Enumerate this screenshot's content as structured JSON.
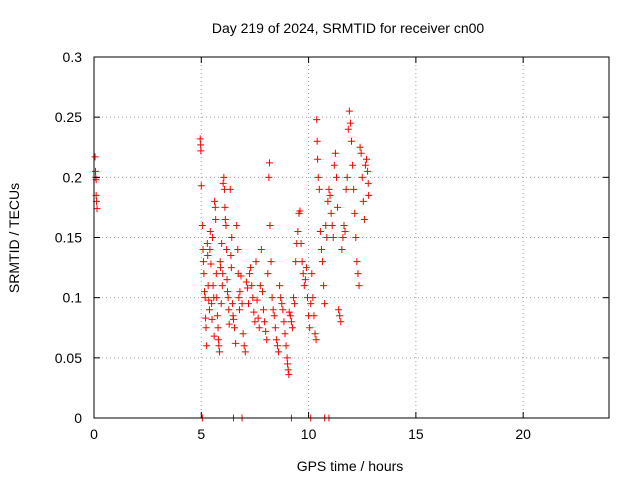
{
  "chart_data": {
    "type": "scatter",
    "title": "Day 219 of 2024, SRMTID for receiver cn00",
    "xlabel": "GPS time / hours",
    "ylabel": "SRMTID / TECUs",
    "xlim": [
      0,
      24
    ],
    "ylim": [
      0,
      0.3
    ],
    "xticks": [
      0,
      5,
      10,
      15,
      20
    ],
    "xtick_labels": [
      "0",
      "5",
      "10",
      "15",
      "20"
    ],
    "yticks": [
      0,
      0.05,
      0.1,
      0.15,
      0.2,
      0.25,
      0.3
    ],
    "ytick_labels": [
      "0",
      "0.05",
      "0.1",
      "0.15",
      "0.2",
      "0.25",
      "0.3"
    ],
    "grid": true,
    "marker": "+",
    "color": "#ff0000",
    "series": [
      {
        "name": "SRMTID",
        "points": [
          [
            0.05,
            0.217
          ],
          [
            0.07,
            0.205
          ],
          [
            0.08,
            0.2
          ],
          [
            0.1,
            0.198
          ],
          [
            0.1,
            0.185
          ],
          [
            0.12,
            0.18
          ],
          [
            0.14,
            0.174
          ],
          [
            4.95,
            0.232
          ],
          [
            4.97,
            0.227
          ],
          [
            4.98,
            0.222
          ],
          [
            5.0,
            0.193
          ],
          [
            5.05,
            0.16
          ],
          [
            5.08,
            0.14
          ],
          [
            5.1,
            0.13
          ],
          [
            5.12,
            0.12
          ],
          [
            5.15,
            0.105
          ],
          [
            5.18,
            0.1
          ],
          [
            5.2,
            0.083
          ],
          [
            5.22,
            0.075
          ],
          [
            5.25,
            0.06
          ],
          [
            5.28,
            0.145
          ],
          [
            5.3,
            0.135
          ],
          [
            5.32,
            0.11
          ],
          [
            5.35,
            0.098
          ],
          [
            5.38,
            0.09
          ],
          [
            5.4,
            0.14
          ],
          [
            5.42,
            0.155
          ],
          [
            5.45,
            0.128
          ],
          [
            5.48,
            0.095
          ],
          [
            5.5,
            0.082
          ],
          [
            5.52,
            0.15
          ],
          [
            5.55,
            0.11
          ],
          [
            5.58,
            0.1
          ],
          [
            5.6,
            0.068
          ],
          [
            5.62,
            0.18
          ],
          [
            5.65,
            0.175
          ],
          [
            5.67,
            0.165
          ],
          [
            5.7,
            0.12
          ],
          [
            5.72,
            0.1
          ],
          [
            5.75,
            0.085
          ],
          [
            5.78,
            0.075
          ],
          [
            5.8,
            0.065
          ],
          [
            5.82,
            0.06
          ],
          [
            5.85,
            0.055
          ],
          [
            5.88,
            0.13
          ],
          [
            5.9,
            0.125
          ],
          [
            5.93,
            0.095
          ],
          [
            5.95,
            0.145
          ],
          [
            5.98,
            0.11
          ],
          [
            6.0,
            0.12
          ],
          [
            6.02,
            0.195
          ],
          [
            6.05,
            0.2
          ],
          [
            6.08,
            0.19
          ],
          [
            6.1,
            0.175
          ],
          [
            6.12,
            0.165
          ],
          [
            6.15,
            0.16
          ],
          [
            6.18,
            0.14
          ],
          [
            6.2,
            0.115
          ],
          [
            6.22,
            0.105
          ],
          [
            6.25,
            0.1
          ],
          [
            6.28,
            0.09
          ],
          [
            6.3,
            0.078
          ],
          [
            6.35,
            0.19
          ],
          [
            6.38,
            0.135
          ],
          [
            6.4,
            0.125
          ],
          [
            6.42,
            0.15
          ],
          [
            6.45,
            0.095
          ],
          [
            6.48,
            0.085
          ],
          [
            6.5,
            0.082
          ],
          [
            6.55,
            0.075
          ],
          [
            6.6,
            0.062
          ],
          [
            6.65,
            0.16
          ],
          [
            6.7,
            0.14
          ],
          [
            6.72,
            0.12
          ],
          [
            6.75,
            0.1
          ],
          [
            6.78,
            0.09
          ],
          [
            6.8,
            0.105
          ],
          [
            6.85,
            0.118
          ],
          [
            6.9,
            0.095
          ],
          [
            6.95,
            0.07
          ],
          [
            7.0,
            0.06
          ],
          [
            7.05,
            0.055
          ],
          [
            7.1,
            0.113
          ],
          [
            7.15,
            0.108
          ],
          [
            7.2,
            0.095
          ],
          [
            7.25,
            0.12
          ],
          [
            7.3,
            0.125
          ],
          [
            7.35,
            0.11
          ],
          [
            7.4,
            0.1
          ],
          [
            7.45,
            0.088
          ],
          [
            7.5,
            0.08
          ],
          [
            7.55,
            0.13
          ],
          [
            7.6,
            0.098
          ],
          [
            7.65,
            0.083
          ],
          [
            7.7,
            0.075
          ],
          [
            7.75,
            0.11
          ],
          [
            7.8,
            0.14
          ],
          [
            7.85,
            0.105
          ],
          [
            7.9,
            0.09
          ],
          [
            7.95,
            0.08
          ],
          [
            8.0,
            0.072
          ],
          [
            8.05,
            0.065
          ],
          [
            8.1,
            0.12
          ],
          [
            8.15,
            0.2
          ],
          [
            8.18,
            0.212
          ],
          [
            8.2,
            0.16
          ],
          [
            8.25,
            0.13
          ],
          [
            8.3,
            0.1
          ],
          [
            8.35,
            0.09
          ],
          [
            8.4,
            0.085
          ],
          [
            8.45,
            0.075
          ],
          [
            8.5,
            0.065
          ],
          [
            8.55,
            0.06
          ],
          [
            8.6,
            0.055
          ],
          [
            8.65,
            0.11
          ],
          [
            8.7,
            0.1
          ],
          [
            8.75,
            0.095
          ],
          [
            8.8,
            0.09
          ],
          [
            8.85,
            0.08
          ],
          [
            8.9,
            0.07
          ],
          [
            8.95,
            0.06
          ],
          [
            9.0,
            0.05
          ],
          [
            9.02,
            0.045
          ],
          [
            9.05,
            0.04
          ],
          [
            9.08,
            0.036
          ],
          [
            9.1,
            0.088
          ],
          [
            9.15,
            0.085
          ],
          [
            9.2,
            0.08
          ],
          [
            9.25,
            0.075
          ],
          [
            9.3,
            0.1
          ],
          [
            9.35,
            0.095
          ],
          [
            9.4,
            0.13
          ],
          [
            9.45,
            0.145
          ],
          [
            9.5,
            0.155
          ],
          [
            9.55,
            0.17
          ],
          [
            9.6,
            0.172
          ],
          [
            9.65,
            0.145
          ],
          [
            9.7,
            0.13
          ],
          [
            9.75,
            0.12
          ],
          [
            9.8,
            0.11
          ],
          [
            9.85,
            0.115
          ],
          [
            9.9,
            0.125
          ],
          [
            9.95,
            0.1
          ],
          [
            10.0,
            0.085
          ],
          [
            10.05,
            0.075
          ],
          [
            10.1,
            0.095
          ],
          [
            10.15,
            0.12
          ],
          [
            10.2,
            0.1
          ],
          [
            10.25,
            0.085
          ],
          [
            10.3,
            0.07
          ],
          [
            10.35,
            0.065
          ],
          [
            10.38,
            0.248
          ],
          [
            10.4,
            0.23
          ],
          [
            10.42,
            0.215
          ],
          [
            10.45,
            0.2
          ],
          [
            10.5,
            0.19
          ],
          [
            10.55,
            0.155
          ],
          [
            10.6,
            0.14
          ],
          [
            10.65,
            0.13
          ],
          [
            10.7,
            0.11
          ],
          [
            10.75,
            0.095
          ],
          [
            10.8,
            0.16
          ],
          [
            10.85,
            0.15
          ],
          [
            10.9,
            0.18
          ],
          [
            10.95,
            0.19
          ],
          [
            11.0,
            0.185
          ],
          [
            11.05,
            0.17
          ],
          [
            11.1,
            0.16
          ],
          [
            11.15,
            0.15
          ],
          [
            11.2,
            0.21
          ],
          [
            11.25,
            0.22
          ],
          [
            11.3,
            0.2
          ],
          [
            11.35,
            0.175
          ],
          [
            11.4,
            0.09
          ],
          [
            11.45,
            0.085
          ],
          [
            11.5,
            0.08
          ],
          [
            11.55,
            0.14
          ],
          [
            11.6,
            0.15
          ],
          [
            11.65,
            0.16
          ],
          [
            11.7,
            0.155
          ],
          [
            11.75,
            0.19
          ],
          [
            11.8,
            0.2
          ],
          [
            11.85,
            0.24
          ],
          [
            11.9,
            0.255
          ],
          [
            11.95,
            0.245
          ],
          [
            12.0,
            0.23
          ],
          [
            12.05,
            0.21
          ],
          [
            12.1,
            0.19
          ],
          [
            12.15,
            0.17
          ],
          [
            12.2,
            0.15
          ],
          [
            12.25,
            0.13
          ],
          [
            12.3,
            0.12
          ],
          [
            12.35,
            0.11
          ],
          [
            12.4,
            0.225
          ],
          [
            12.45,
            0.22
          ],
          [
            12.5,
            0.2
          ],
          [
            12.55,
            0.18
          ],
          [
            12.6,
            0.165
          ],
          [
            12.65,
            0.21
          ],
          [
            12.7,
            0.215
          ],
          [
            12.75,
            0.205
          ],
          [
            12.78,
            0.195
          ],
          [
            12.8,
            0.185
          ],
          [
            5.05,
            0.0
          ],
          [
            6.5,
            0.0
          ],
          [
            6.9,
            0.0
          ],
          [
            9.2,
            0.0
          ],
          [
            10.1,
            0.0
          ],
          [
            10.75,
            0.0
          ],
          [
            10.95,
            0.0
          ]
        ]
      }
    ]
  }
}
